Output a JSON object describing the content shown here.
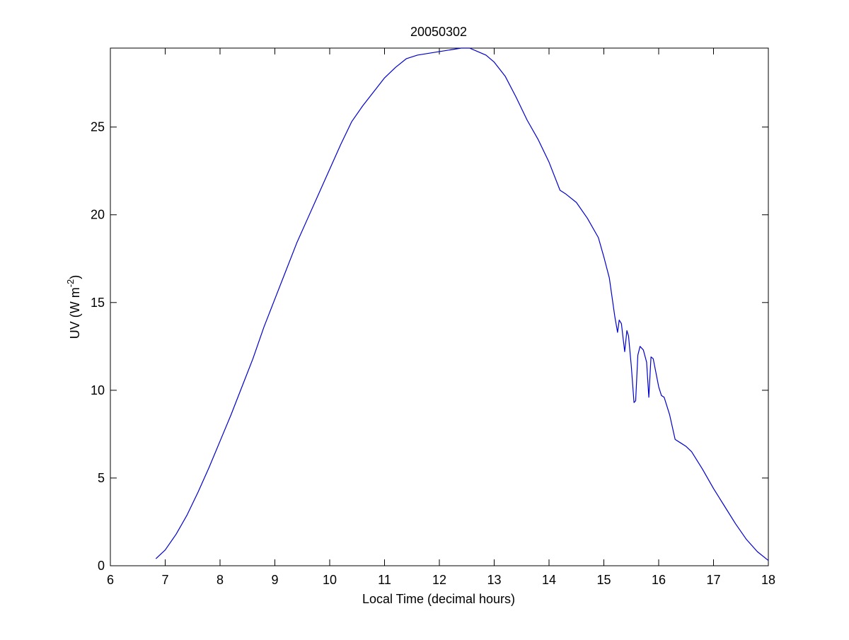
{
  "chart_data": {
    "type": "line",
    "title": "20050302",
    "xlabel": "Local Time (decimal hours)",
    "ylabel": "UV (W m",
    "ylabel_exponent": "-2",
    "ylabel_close": ")",
    "xlim": [
      6,
      18
    ],
    "ylim": [
      0,
      29.5
    ],
    "xticks": [
      6,
      7,
      8,
      9,
      10,
      11,
      12,
      13,
      14,
      15,
      16,
      17,
      18
    ],
    "yticks": [
      0,
      5,
      10,
      15,
      20,
      25
    ],
    "xtick_labels": [
      "6",
      "7",
      "8",
      "9",
      "10",
      "11",
      "12",
      "13",
      "14",
      "15",
      "16",
      "17",
      "18"
    ],
    "ytick_labels": [
      "0",
      "5",
      "10",
      "15",
      "20",
      "25"
    ],
    "grid": false,
    "legend": "none",
    "series": [
      {
        "color": "#0000cc",
        "x": [
          6.83,
          7.0,
          7.2,
          7.4,
          7.6,
          7.8,
          8.0,
          8.2,
          8.4,
          8.6,
          8.8,
          9.0,
          9.2,
          9.4,
          9.6,
          9.8,
          10.0,
          10.2,
          10.4,
          10.6,
          10.8,
          11.0,
          11.2,
          11.4,
          11.6,
          11.8,
          12.0,
          12.2,
          12.4,
          12.55,
          12.7,
          12.85,
          13.0,
          13.2,
          13.4,
          13.6,
          13.8,
          14.0,
          14.2,
          14.3,
          14.5,
          14.7,
          14.9,
          15.0,
          15.1,
          15.2,
          15.25,
          15.28,
          15.32,
          15.38,
          15.42,
          15.45,
          15.5,
          15.55,
          15.58,
          15.62,
          15.66,
          15.72,
          15.78,
          15.82,
          15.86,
          15.9,
          15.95,
          16.0,
          16.05,
          16.1,
          16.2,
          16.3,
          16.4,
          16.5,
          16.6,
          16.8,
          17.0,
          17.2,
          17.4,
          17.6,
          17.8,
          18.0
        ],
        "y": [
          0.4,
          0.9,
          1.8,
          2.9,
          4.2,
          5.6,
          7.1,
          8.6,
          10.2,
          11.8,
          13.6,
          15.2,
          16.8,
          18.4,
          19.8,
          21.2,
          22.6,
          24.0,
          25.3,
          26.2,
          27.0,
          27.8,
          28.4,
          28.9,
          29.1,
          29.2,
          29.3,
          29.4,
          29.5,
          29.5,
          29.3,
          29.1,
          28.7,
          27.9,
          26.7,
          25.4,
          24.3,
          23.0,
          21.4,
          21.2,
          20.7,
          19.8,
          18.7,
          17.6,
          16.4,
          14.2,
          13.3,
          14.0,
          13.8,
          12.2,
          13.4,
          13.1,
          11.4,
          9.3,
          9.4,
          12.0,
          12.5,
          12.3,
          11.6,
          9.6,
          11.9,
          11.8,
          11.0,
          10.2,
          9.7,
          9.6,
          8.6,
          7.2,
          7.0,
          6.8,
          6.5,
          5.5,
          4.4,
          3.4,
          2.4,
          1.5,
          0.8,
          0.3
        ]
      }
    ]
  }
}
